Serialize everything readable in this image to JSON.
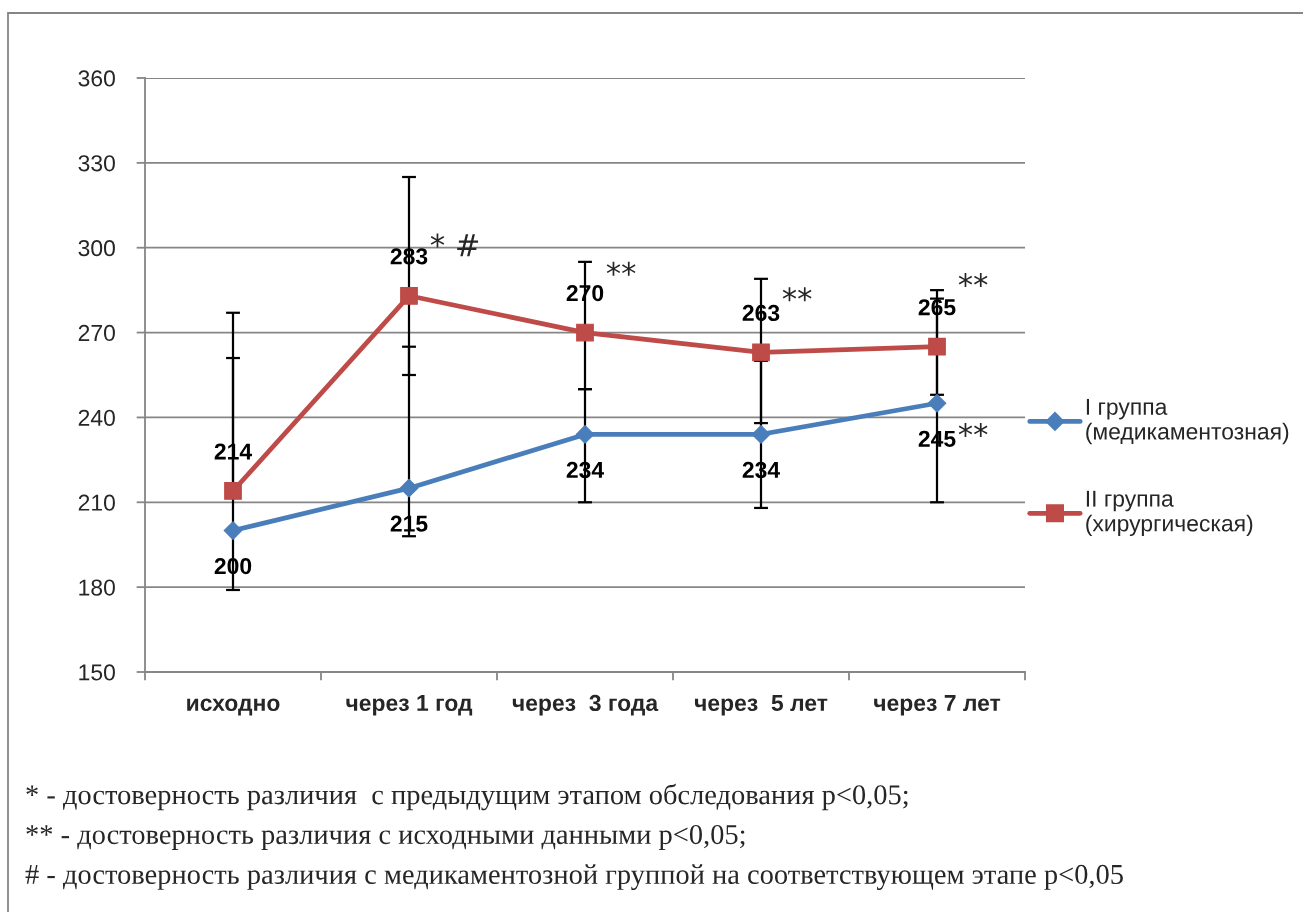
{
  "chart_data": {
    "type": "line",
    "categories": [
      "исходно",
      "через 1 год",
      "через  3 года",
      "через  5 лет",
      "через 7 лет"
    ],
    "series": [
      {
        "name": "I группа\n(медикаментозная)",
        "color": "#4a7ebb",
        "marker": "diamond",
        "values": [
          200,
          215,
          234,
          234,
          245
        ],
        "errors": [
          [
            179,
            261
          ],
          [
            198,
            265
          ],
          [
            210,
            250
          ],
          [
            208,
            260
          ],
          [
            210,
            282
          ]
        ]
      },
      {
        "name": "II группа\n(хирургическая)",
        "color": "#be4b48",
        "marker": "square",
        "values": [
          214,
          283,
          270,
          263,
          265
        ],
        "errors": [
          [
            214,
            277
          ],
          [
            255,
            325
          ],
          [
            250,
            295
          ],
          [
            238,
            289
          ],
          [
            248,
            285
          ]
        ]
      }
    ],
    "ylim": [
      150,
      360
    ],
    "yticks": [
      150,
      180,
      210,
      240,
      270,
      300,
      330,
      360
    ],
    "grid": "y",
    "legend": "right",
    "data_labels": true,
    "annotations": [
      {
        "text": "* #",
        "x": "через 1 год",
        "y": 300
      },
      {
        "text": "**",
        "x": "через  3 года",
        "y": 290
      },
      {
        "text": "**",
        "x": "через  5 лет",
        "y": 281
      },
      {
        "text": "**",
        "x": "через 7 лет",
        "y": 286
      },
      {
        "text": "**",
        "x": "через 7 лет",
        "y": 233
      },
      "* - достоверность различия  с предыдущим этапом обследования p<0,05;",
      "** - достоверность различия с исходными данными p<0,05;",
      "# - достоверность различия с медикаментозной группой на соответствующем этапе p<0,05"
    ]
  }
}
